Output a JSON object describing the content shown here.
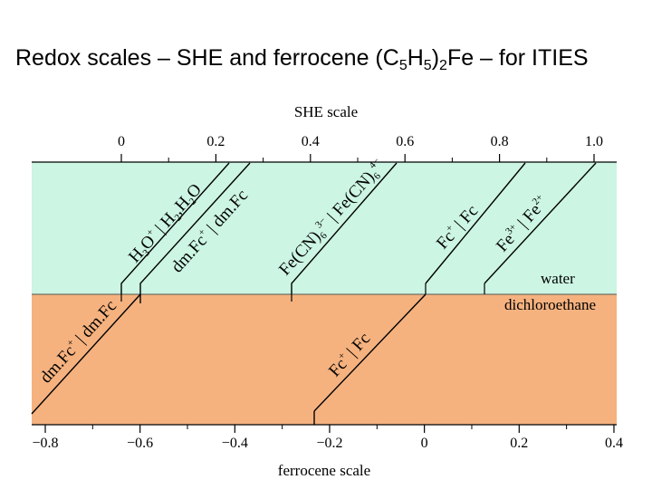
{
  "title": {
    "pre": "Redox scales – SHE and ferrocene (C",
    "sub1": "5",
    "mid": "H",
    "sub2": "5",
    "post": ")",
    "sub3": "2",
    "end": "Fe – for ITIES"
  },
  "top_axis": {
    "title": "SHE scale",
    "ticks": [
      {
        "value": 0,
        "label": "0"
      },
      {
        "value": 0.2,
        "label": "0.2"
      },
      {
        "value": 0.4,
        "label": "0.4"
      },
      {
        "value": 0.6,
        "label": "0.6"
      },
      {
        "value": 0.8,
        "label": "0.8"
      },
      {
        "value": 1.0,
        "label": "1.0"
      }
    ]
  },
  "bottom_axis": {
    "title": "ferrocene scale",
    "ticks": [
      {
        "value": -0.8,
        "label": "−0.8"
      },
      {
        "value": -0.6,
        "label": "−0.6"
      },
      {
        "value": -0.4,
        "label": "−0.4"
      },
      {
        "value": -0.2,
        "label": "−0.2"
      },
      {
        "value": 0,
        "label": "0"
      },
      {
        "value": 0.2,
        "label": "0.2"
      },
      {
        "value": 0.4,
        "label": "0.4"
      }
    ]
  },
  "phases": {
    "upper": "water",
    "lower": "dichloroethane",
    "upper_color": "#ccf5e3",
    "lower_color": "#f5b27f"
  },
  "couples": {
    "h3o_ox": "H",
    "h3o_sub": "3",
    "h3o_o": "O",
    "h3o_sup": "+",
    "h2_red": "H",
    "h2_sub": "2",
    "h2_comma": ",H",
    "h2o_sub": "2",
    "h2o_o": "O",
    "dmfc_w_ox": "dm.Fc",
    "dmfc_w_sup": "+",
    "dmfc_w_red": "dm.Fc",
    "fecn_ox": "Fe(CN)",
    "fecn_ox_sub": "6",
    "fecn_ox_sup": "3−",
    "fecn_red": "Fe(CN)",
    "fecn_red_sub": "6",
    "fecn_red_sup": "4−",
    "fc_w_ox": "Fc",
    "fc_w_sup": "+",
    "fc_w_red": "Fc",
    "fe_ox": "Fe",
    "fe_ox_sup": "3+",
    "fe_red": "Fe",
    "fe_red_sup": "2+",
    "dmfc_o_ox": "dm.Fc",
    "dmfc_o_sup": "+",
    "dmfc_o_red": "dm.Fc",
    "fc_o_ox": "Fc",
    "fc_o_sup": "+",
    "fc_o_red": "Fc",
    "separator": " | "
  }
}
